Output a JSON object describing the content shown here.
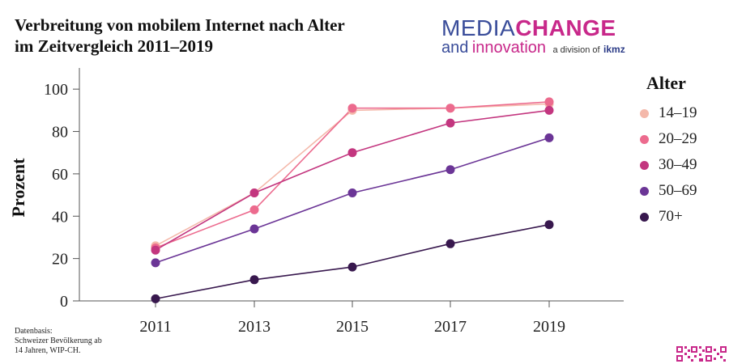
{
  "title_line1": "Verbreitung von mobilem Internet nach Alter",
  "title_line2": "im Zeitvergleich 2011–2019",
  "logo": {
    "media": "MEDIA",
    "change": "CHANGE",
    "and": "and",
    "innovation": "innovation",
    "division": "a division of",
    "ikmz": "ikmz"
  },
  "source": {
    "line1": "Datenbasis:",
    "line2": "Schweizer Bevölkerung ab",
    "line3": "14 Jahren, WIP-CH."
  },
  "colors": {
    "s1": "#f4b8aa",
    "s2": "#ec6b8e",
    "s3": "#c3367f",
    "s4": "#6b3596",
    "s5": "#38184e"
  },
  "chart_data": {
    "type": "line",
    "title": "Verbreitung von mobilem Internet nach Alter im Zeitvergleich 2011–2019",
    "xlabel": "",
    "ylabel": "Prozent",
    "x": [
      "2011",
      "2013",
      "2015",
      "2017",
      "2019"
    ],
    "yticks": [
      "0",
      "20",
      "40",
      "60",
      "80",
      "100"
    ],
    "ylim": [
      0,
      100
    ],
    "legend_title": "Alter",
    "legend_position": "right",
    "grid": false,
    "series": [
      {
        "name": "14–19",
        "color": "#f4b8aa",
        "values": [
          26,
          51,
          90,
          91,
          93
        ]
      },
      {
        "name": "20–29",
        "color": "#ec6b8e",
        "values": [
          25,
          43,
          91,
          91,
          94
        ]
      },
      {
        "name": "30–49",
        "color": "#c3367f",
        "values": [
          24,
          51,
          70,
          84,
          90
        ]
      },
      {
        "name": "50–69",
        "color": "#6b3596",
        "values": [
          18,
          34,
          51,
          62,
          77
        ]
      },
      {
        "name": "70+",
        "color": "#38184e",
        "values": [
          1,
          10,
          16,
          27,
          36
        ]
      }
    ]
  }
}
